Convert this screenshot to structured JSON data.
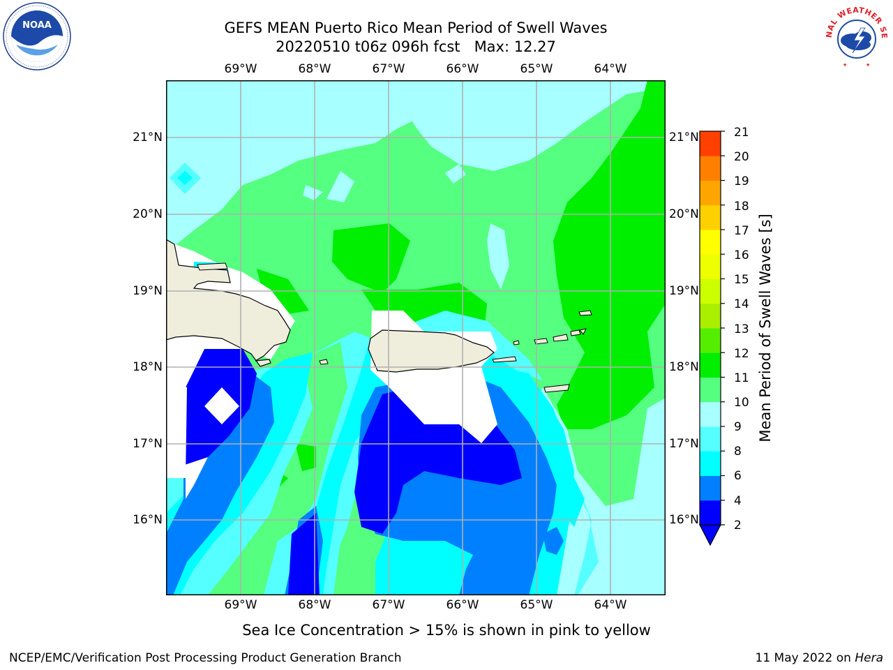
{
  "title_line1": "GEFS MEAN Puerto Rico Mean Period of Swell Waves",
  "title_line2": "20220510 t06z 096h fcst   Max: 12.27",
  "logos": {
    "left": "noaa-logo",
    "right": "national-weather-service-logo",
    "left_text": "NOAA",
    "right_text": "NATIONAL WEATHER SERVICE"
  },
  "map": {
    "lon_ticks": [
      "69°W",
      "68°W",
      "67°W",
      "66°W",
      "65°W",
      "64°W"
    ],
    "lat_ticks": [
      "21°N",
      "20°N",
      "19°N",
      "18°N",
      "17°N",
      "16°N"
    ],
    "lon_range": [
      -70.0,
      -63.25
    ],
    "lat_range": [
      15.0,
      21.75
    ],
    "grid": true,
    "land_color": "#efeedd",
    "no_data_color": "#ffffff"
  },
  "colorbar": {
    "label": "Mean Period of Swell Waves [s]",
    "ticks": [
      "21",
      "20",
      "19",
      "18",
      "17",
      "16",
      "15",
      "14",
      "13",
      "12",
      "11",
      "10",
      "9",
      "8",
      "6",
      "4",
      "2"
    ],
    "levels": [
      2,
      4,
      6,
      8,
      9,
      10,
      11,
      12,
      13,
      14,
      15,
      16,
      17,
      18,
      19,
      20,
      21
    ],
    "colors": [
      "#0000ff",
      "#0080ff",
      "#00ffff",
      "#55ffff",
      "#a8ffff",
      "#55ff80",
      "#00ee00",
      "#55ee00",
      "#aaee00",
      "#ccff00",
      "#eeff00",
      "#ffff00",
      "#ffd000",
      "#ffa500",
      "#ff8000",
      "#ff4000",
      "#ff0000"
    ],
    "extend": "min",
    "under_color": "#0000ff"
  },
  "caption": "Sea Ice Concentration > 15% is shown in pink to yellow",
  "footer_left": "NCEP/EMC/Verification Post Processing Product Generation Branch",
  "footer_date": "11 May 2022 on ",
  "footer_machine": "Hera"
}
